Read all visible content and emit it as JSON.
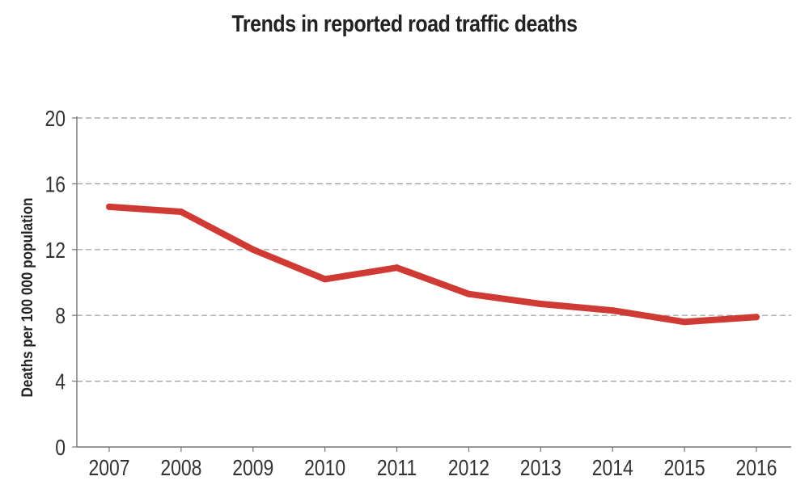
{
  "chart_data": {
    "type": "line",
    "title": "Trends in reported road traffic deaths",
    "xlabel": "",
    "ylabel": "Deaths per 100 000 population",
    "x": [
      "2007",
      "2008",
      "2009",
      "2010",
      "2011",
      "2012",
      "2013",
      "2014",
      "2015",
      "2016"
    ],
    "series": [
      {
        "values": [
          14.6,
          14.3,
          12.0,
          10.2,
          10.9,
          9.3,
          8.7,
          8.3,
          7.6,
          7.9
        ]
      }
    ],
    "ylim": [
      0,
      20
    ],
    "yticks": [
      0,
      4,
      8,
      12,
      16,
      20
    ],
    "grid": "horizontal-dashed",
    "legend": "none",
    "line_color": "#d03a35"
  }
}
